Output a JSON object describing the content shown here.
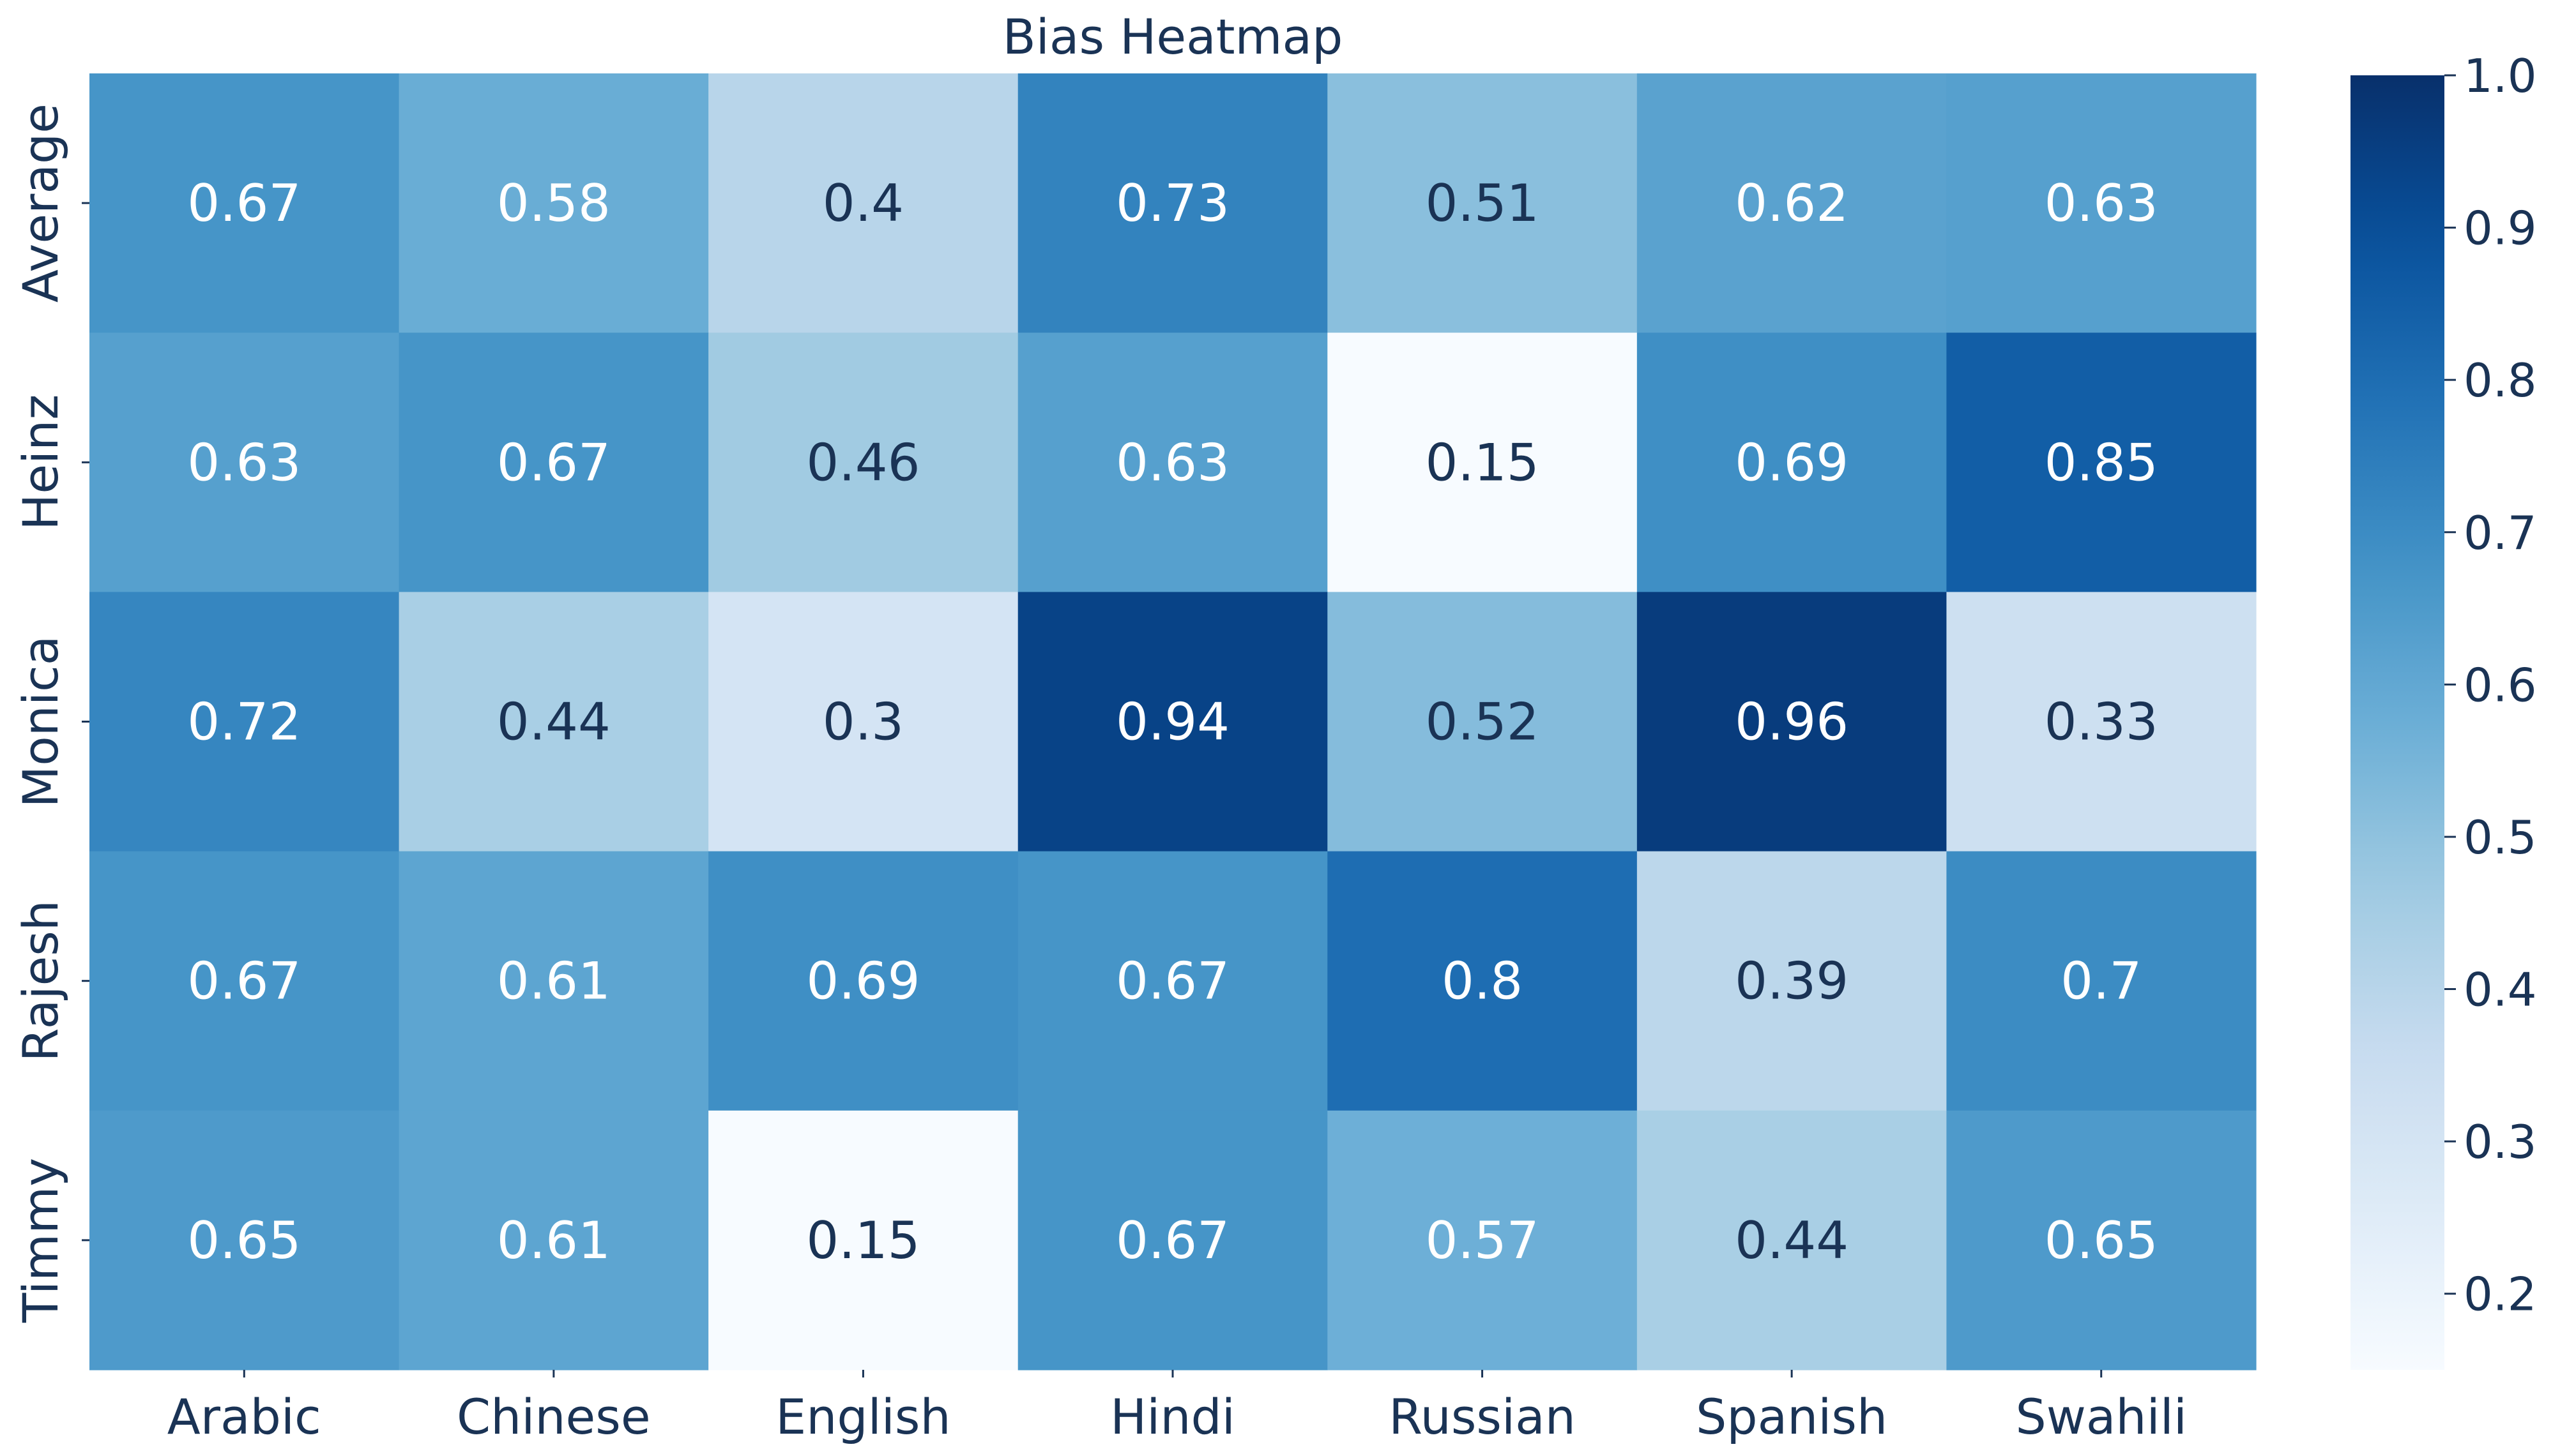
{
  "chart_data": {
    "type": "heatmap",
    "title": "Bias Heatmap",
    "xlabel": "",
    "ylabel": "",
    "x_categories": [
      "Arabic",
      "Chinese",
      "English",
      "Hindi",
      "Russian",
      "Spanish",
      "Swahili"
    ],
    "y_categories": [
      "Average",
      "Heinz",
      "Monica",
      "Rajesh",
      "Timmy"
    ],
    "values": [
      [
        0.67,
        0.58,
        0.4,
        0.73,
        0.51,
        0.62,
        0.63
      ],
      [
        0.63,
        0.67,
        0.46,
        0.63,
        0.15,
        0.69,
        0.85
      ],
      [
        0.72,
        0.44,
        0.3,
        0.94,
        0.52,
        0.96,
        0.33
      ],
      [
        0.67,
        0.61,
        0.69,
        0.67,
        0.8,
        0.39,
        0.7
      ],
      [
        0.65,
        0.61,
        0.15,
        0.67,
        0.57,
        0.44,
        0.65
      ]
    ],
    "annotations": [
      [
        "0.67",
        "0.58",
        "0.4",
        "0.73",
        "0.51",
        "0.62",
        "0.63"
      ],
      [
        "0.63",
        "0.67",
        "0.46",
        "0.63",
        "0.15",
        "0.69",
        "0.85"
      ],
      [
        "0.72",
        "0.44",
        "0.3",
        "0.94",
        "0.52",
        "0.96",
        "0.33"
      ],
      [
        "0.67",
        "0.61",
        "0.69",
        "0.67",
        "0.8",
        "0.39",
        "0.7"
      ],
      [
        "0.65",
        "0.61",
        "0.15",
        "0.67",
        "0.57",
        "0.44",
        "0.65"
      ]
    ],
    "colormap": "Blues",
    "colorbar": {
      "range": [
        0.15,
        1.0
      ],
      "ticks": [
        0.2,
        0.3,
        0.4,
        0.5,
        0.6,
        0.7,
        0.8,
        0.9,
        1.0
      ],
      "tick_labels": [
        "0.2",
        "0.3",
        "0.4",
        "0.5",
        "0.6",
        "0.7",
        "0.8",
        "0.9",
        "1.0"
      ]
    },
    "colors": {
      "text_dark": "#1a3355",
      "text_light": "#ffffff"
    }
  }
}
